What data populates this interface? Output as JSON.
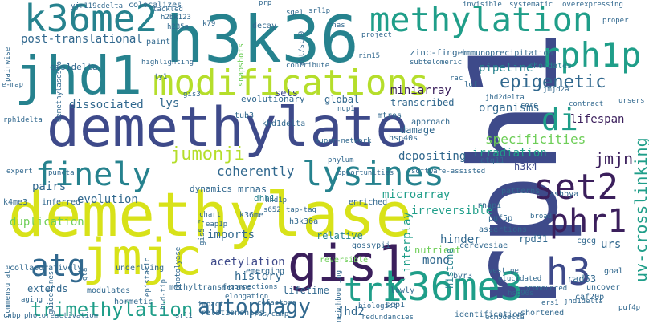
{
  "palette": {
    "purple": "#3b1f5c",
    "indigo": "#3e4a8a",
    "blue": "#31688e",
    "teal": "#26828e",
    "green": "#1f9e89",
    "lime": "#6ece58",
    "yellowgreen": "#b5de2b",
    "yellow": "#d8e219"
  },
  "words": [
    {
      "text": "demethylase",
      "size": 76,
      "color": "yellow"
    },
    {
      "text": "demethylate",
      "size": 68,
      "color": "indigo"
    },
    {
      "text": "h3k36",
      "size": 80,
      "color": "teal"
    },
    {
      "text": "jhd1",
      "size": 66,
      "color": "teal"
    },
    {
      "text": "rph1",
      "size": 150,
      "color": "indigo"
    },
    {
      "text": "jmjc",
      "size": 62,
      "color": "yellow"
    },
    {
      "text": "gis1",
      "size": 62,
      "color": "purple"
    },
    {
      "text": "k36me2",
      "size": 46,
      "color": "teal"
    },
    {
      "text": "methylation",
      "size": 42,
      "color": "green"
    },
    {
      "text": "modifications",
      "size": 44,
      "color": "yellowgreen"
    },
    {
      "text": "k36me3",
      "size": 48,
      "color": "green"
    },
    {
      "text": "lysines",
      "size": 42,
      "color": "teal"
    },
    {
      "text": "finely",
      "size": 40,
      "color": "teal"
    },
    {
      "text": "rph1p",
      "size": 42,
      "color": "green"
    },
    {
      "text": "set2",
      "size": 44,
      "color": "purple"
    },
    {
      "text": "phr1",
      "size": 40,
      "color": "purple"
    },
    {
      "text": "h3",
      "size": 46,
      "color": "indigo"
    },
    {
      "text": "atg",
      "size": 38,
      "color": "blue"
    },
    {
      "text": "tri",
      "size": 40,
      "color": "green"
    },
    {
      "text": "di",
      "size": 38,
      "color": "green"
    },
    {
      "text": "autophagy",
      "size": 26,
      "color": "blue"
    },
    {
      "text": "trimethylation",
      "size": 24,
      "color": "green"
    },
    {
      "text": "epigenetic",
      "size": 22,
      "color": "blue"
    },
    {
      "text": "jumonji",
      "size": 22,
      "color": "yellowgreen"
    },
    {
      "text": "jmjn",
      "size": 20,
      "color": "purple"
    },
    {
      "text": "uv-crosslinking",
      "size": 20,
      "color": "green"
    },
    {
      "text": "post-translational",
      "size": 14,
      "color": "blue"
    },
    {
      "text": "dissociated",
      "size": 14,
      "color": "blue"
    },
    {
      "text": "miniarray",
      "size": 14,
      "color": "purple"
    },
    {
      "text": "pipeline",
      "size": 14,
      "color": "teal"
    },
    {
      "text": "organisms",
      "size": 14,
      "color": "blue"
    },
    {
      "text": "lifespan",
      "size": 14,
      "color": "purple"
    },
    {
      "text": "specificities",
      "size": 16,
      "color": "lime"
    },
    {
      "text": "irradiation",
      "size": 14,
      "color": "green"
    },
    {
      "text": "coherently",
      "size": 16,
      "color": "blue"
    },
    {
      "text": "evolution",
      "size": 14,
      "color": "blue"
    },
    {
      "text": "duplication",
      "size": 14,
      "color": "lime"
    },
    {
      "text": "imports",
      "size": 14,
      "color": "blue"
    },
    {
      "text": "acetylation",
      "size": 14,
      "color": "indigo"
    },
    {
      "text": "history",
      "size": 14,
      "color": "blue"
    },
    {
      "text": "microarray",
      "size": 14,
      "color": "green"
    },
    {
      "text": "depositing",
      "size": 14,
      "color": "blue"
    },
    {
      "text": "irreversible",
      "size": 14,
      "color": "green"
    },
    {
      "text": "hinder",
      "size": 14,
      "color": "blue"
    },
    {
      "text": "relative",
      "size": 12,
      "color": "teal"
    },
    {
      "text": "interplay",
      "size": 14,
      "color": "green"
    },
    {
      "text": "lifetime",
      "size": 12,
      "color": "blue"
    },
    {
      "text": "extends",
      "size": 12,
      "color": "blue"
    },
    {
      "text": "jhd2",
      "size": 14,
      "color": "blue"
    },
    {
      "text": "nutrient",
      "size": 12,
      "color": "lime"
    },
    {
      "text": "histone",
      "size": 12,
      "color": "teal"
    },
    {
      "text": "mono",
      "size": 14,
      "color": "blue"
    },
    {
      "text": "rpd31",
      "size": 12,
      "color": "blue"
    },
    {
      "text": "rad53",
      "size": 12,
      "color": "blue"
    },
    {
      "text": "urs",
      "size": 14,
      "color": "blue"
    },
    {
      "text": "gis1delta",
      "size": 11,
      "color": "blue"
    },
    {
      "text": "pairs",
      "size": 14,
      "color": "blue"
    },
    {
      "text": "dynamics",
      "size": 11,
      "color": "blue"
    },
    {
      "text": "evolutionary",
      "size": 11,
      "color": "blue"
    },
    {
      "text": "global",
      "size": 12,
      "color": "blue"
    },
    {
      "text": "transcribed",
      "size": 12,
      "color": "blue"
    },
    {
      "text": "damage",
      "size": 12,
      "color": "blue"
    },
    {
      "text": "lys",
      "size": 14,
      "color": "blue"
    },
    {
      "text": "mrnas",
      "size": 12,
      "color": "blue"
    },
    {
      "text": "dhh1",
      "size": 11,
      "color": "teal"
    },
    {
      "text": "sets",
      "size": 12,
      "color": "indigo"
    },
    {
      "text": "zinc-finger",
      "size": 11,
      "color": "blue"
    },
    {
      "text": "immunoprecipitation",
      "size": 10,
      "color": "blue"
    },
    {
      "text": "chordates",
      "size": 10,
      "color": "teal"
    },
    {
      "text": "colocalizes",
      "size": 10,
      "color": "blue"
    },
    {
      "text": "snapshots",
      "size": 10,
      "color": "lime"
    },
    {
      "text": "k4me3",
      "size": 10,
      "color": "blue"
    },
    {
      "text": "inferred",
      "size": 10,
      "color": "blue"
    },
    {
      "text": "collaboratively",
      "size": 10,
      "color": "blue"
    },
    {
      "text": "commensurate",
      "size": 9,
      "color": "blue"
    },
    {
      "text": "guidelines",
      "size": 9,
      "color": "blue"
    },
    {
      "text": "underlying",
      "size": 10,
      "color": "blue"
    },
    {
      "text": "modulates",
      "size": 10,
      "color": "blue"
    },
    {
      "text": "hormetic",
      "size": 10,
      "color": "blue"
    },
    {
      "text": "methyltransferase",
      "size": 10,
      "color": "blue"
    },
    {
      "text": "emerging",
      "size": 10,
      "color": "blue"
    },
    {
      "text": "relationships",
      "size": 10,
      "color": "blue"
    },
    {
      "text": "identification",
      "size": 10,
      "color": "blue"
    },
    {
      "text": "shortened",
      "size": 10,
      "color": "blue"
    },
    {
      "text": "photoreactivation",
      "size": 9,
      "color": "blue"
    },
    {
      "text": "gossypii",
      "size": 10,
      "color": "blue"
    },
    {
      "text": "cerevesiae",
      "size": 10,
      "color": "blue"
    },
    {
      "text": "assertions",
      "size": 10,
      "color": "blue"
    },
    {
      "text": "vestige",
      "size": 9,
      "color": "blue"
    },
    {
      "text": "cgcg",
      "size": 10,
      "color": "blue"
    },
    {
      "text": "uncover",
      "size": 10,
      "color": "blue"
    },
    {
      "text": "caf20p",
      "size": 10,
      "color": "blue"
    },
    {
      "text": "goal",
      "size": 10,
      "color": "blue"
    },
    {
      "text": "jhd1delta",
      "size": 9,
      "color": "blue"
    },
    {
      "text": "hsp90s",
      "size": 9,
      "color": "blue"
    },
    {
      "text": "enriched",
      "size": 10,
      "color": "blue"
    },
    {
      "text": "reversible",
      "size": 10,
      "color": "lime"
    },
    {
      "text": "byr3",
      "size": 10,
      "color": "blue"
    },
    {
      "text": "sdp1",
      "size": 10,
      "color": "blue"
    },
    {
      "text": "lowly",
      "size": 10,
      "color": "blue"
    },
    {
      "text": "bud-tip",
      "size": 9,
      "color": "blue"
    },
    {
      "text": "cofactors",
      "size": 9,
      "color": "blue"
    },
    {
      "text": "epistatic",
      "size": 9,
      "color": "blue"
    },
    {
      "text": "connections",
      "size": 9,
      "color": "blue"
    },
    {
      "text": "photolyase",
      "size": 9,
      "color": "blue"
    },
    {
      "text": "tackled",
      "size": 9,
      "color": "blue"
    },
    {
      "text": "h2bk123",
      "size": 9,
      "color": "blue"
    },
    {
      "text": "h235a",
      "size": 9,
      "color": "blue"
    },
    {
      "text": "k79",
      "size": 9,
      "color": "blue"
    },
    {
      "text": "decay",
      "size": 10,
      "color": "blue"
    },
    {
      "text": "akt/sch9",
      "size": 9,
      "color": "blue"
    },
    {
      "text": "paint",
      "size": 10,
      "color": "blue"
    },
    {
      "text": "highlighting",
      "size": 9,
      "color": "blue"
    },
    {
      "text": "contribute",
      "size": 9,
      "color": "blue"
    },
    {
      "text": "project",
      "size": 9,
      "color": "blue"
    },
    {
      "text": "invisible",
      "size": 9,
      "color": "blue"
    },
    {
      "text": "systematic",
      "size": 9,
      "color": "blue"
    },
    {
      "text": "overexpressing",
      "size": 9,
      "color": "blue"
    },
    {
      "text": "proper",
      "size": 9,
      "color": "blue"
    },
    {
      "text": "rnas",
      "size": 9,
      "color": "blue"
    },
    {
      "text": "srl1p",
      "size": 9,
      "color": "blue"
    },
    {
      "text": "sge1",
      "size": 9,
      "color": "blue"
    },
    {
      "text": "prp",
      "size": 9,
      "color": "blue"
    },
    {
      "text": "rim15",
      "size": 9,
      "color": "blue"
    },
    {
      "text": "subtelomeric",
      "size": 9,
      "color": "blue"
    },
    {
      "text": "rac",
      "size": 9,
      "color": "blue"
    },
    {
      "text": "lof",
      "size": 9,
      "color": "blue"
    },
    {
      "text": "core",
      "size": 9,
      "color": "blue"
    },
    {
      "text": "contract",
      "size": 9,
      "color": "blue"
    },
    {
      "text": "ursers",
      "size": 9,
      "color": "blue"
    },
    {
      "text": "jmjd2a",
      "size": 9,
      "color": "blue"
    },
    {
      "text": "jhd2delta",
      "size": 9,
      "color": "blue"
    },
    {
      "text": "tub3",
      "size": 10,
      "color": "blue"
    },
    {
      "text": "khd1delta",
      "size": 10,
      "color": "blue"
    },
    {
      "text": "nup1",
      "size": 9,
      "color": "blue"
    },
    {
      "text": "mtros",
      "size": 10,
      "color": "blue"
    },
    {
      "text": "hsp40s",
      "size": 10,
      "color": "blue"
    },
    {
      "text": "approach",
      "size": 10,
      "color": "blue"
    },
    {
      "text": "atg11",
      "size": 10,
      "color": "blue"
    },
    {
      "text": "h3k4",
      "size": 12,
      "color": "indigo"
    },
    {
      "text": "super-network",
      "size": 9,
      "color": "blue"
    },
    {
      "text": "phylum",
      "size": 9,
      "color": "blue"
    },
    {
      "text": "opportunities",
      "size": 9,
      "color": "blue"
    },
    {
      "text": "software-assisted",
      "size": 9,
      "color": "blue"
    },
    {
      "text": "patterns",
      "size": 10,
      "color": "blue"
    },
    {
      "text": "ashbya",
      "size": 10,
      "color": "blue"
    },
    {
      "text": "rnapi",
      "size": 10,
      "color": "blue"
    },
    {
      "text": "puf5p",
      "size": 10,
      "color": "blue"
    },
    {
      "text": "broad",
      "size": 9,
      "color": "blue"
    },
    {
      "text": "khd1p",
      "size": 9,
      "color": "blue"
    },
    {
      "text": "s652",
      "size": 9,
      "color": "blue"
    },
    {
      "text": "tap-tag",
      "size": 9,
      "color": "blue"
    },
    {
      "text": "h3k36a",
      "size": 10,
      "color": "blue"
    },
    {
      "text": "k36me",
      "size": 10,
      "color": "blue"
    },
    {
      "text": "gis5-7",
      "size": 9,
      "color": "blue"
    },
    {
      "text": "gta",
      "size": 9,
      "color": "blue"
    },
    {
      "text": "ddl1",
      "size": 9,
      "color": "blue"
    },
    {
      "text": "aging",
      "size": 9,
      "color": "blue"
    },
    {
      "text": "cnbp",
      "size": 9,
      "color": "blue"
    },
    {
      "text": "impact",
      "size": 9,
      "color": "blue"
    },
    {
      "text": "srl1",
      "size": 9,
      "color": "blue"
    },
    {
      "text": "ras/camp",
      "size": 9,
      "color": "blue"
    },
    {
      "text": "biologist",
      "size": 9,
      "color": "blue"
    },
    {
      "text": "redundancies",
      "size": 9,
      "color": "blue"
    },
    {
      "text": "ecm5delta",
      "size": 9,
      "color": "blue"
    },
    {
      "text": "ers1",
      "size": 9,
      "color": "blue"
    },
    {
      "text": "puf4p",
      "size": 9,
      "color": "blue"
    },
    {
      "text": "elucidated",
      "size": 9,
      "color": "blue"
    },
    {
      "text": "pronounced",
      "size": 9,
      "color": "blue"
    },
    {
      "text": "neighbouring",
      "size": 9,
      "color": "blue"
    },
    {
      "text": "elongation",
      "size": 9,
      "color": "blue"
    },
    {
      "text": "chart",
      "size": 9,
      "color": "blue"
    },
    {
      "text": "eap1p",
      "size": 9,
      "color": "blue"
    },
    {
      "text": "ty1",
      "size": 9,
      "color": "blue"
    },
    {
      "text": "gis3",
      "size": 9,
      "color": "blue"
    },
    {
      "text": "yjr119cdelta",
      "size": 9,
      "color": "blue"
    },
    {
      "text": "demethylasesto",
      "size": 9,
      "color": "blue"
    },
    {
      "text": "pairwise",
      "size": 9,
      "color": "blue"
    },
    {
      "text": "expert",
      "size": 9,
      "color": "blue"
    },
    {
      "text": "puncta",
      "size": 9,
      "color": "blue"
    },
    {
      "text": "e-map",
      "size": 9,
      "color": "blue"
    },
    {
      "text": "rph1delta",
      "size": 9,
      "color": "blue"
    }
  ]
}
